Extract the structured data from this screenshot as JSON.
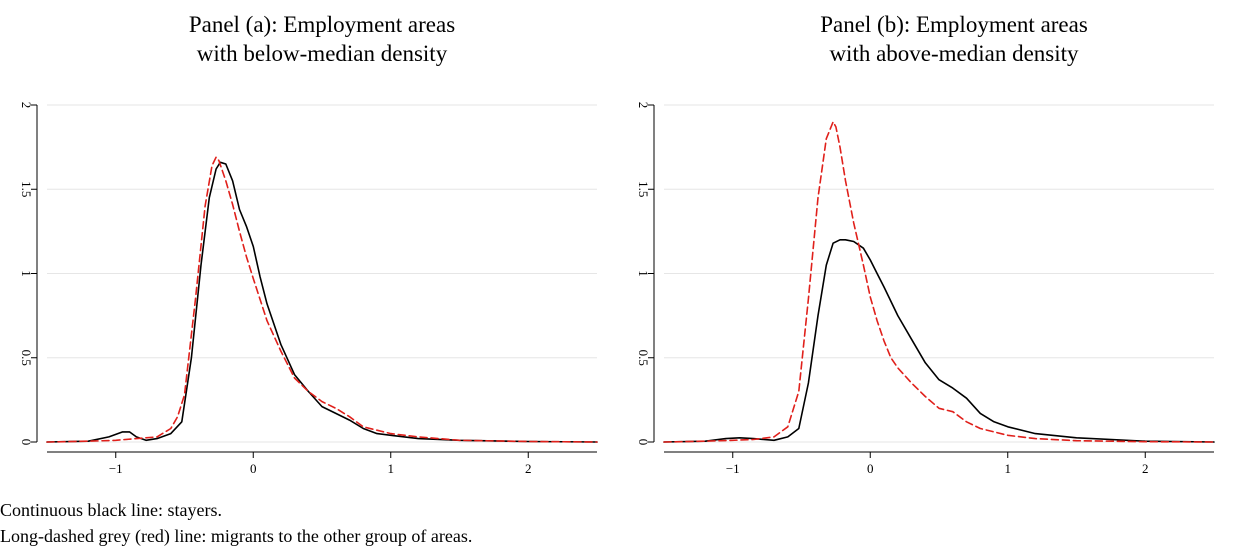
{
  "figure": {
    "caption_lines": [
      "Continuous black line: stayers.",
      "Long-dashed grey (red) line: migrants to the other group of areas."
    ]
  },
  "chart_data": [
    {
      "type": "line",
      "title_lines": [
        "Panel (a): Employment areas",
        "with below-median density"
      ],
      "xlabel": "",
      "ylabel": "",
      "xlim": [
        -1.5,
        2.5
      ],
      "ylim": [
        0,
        2
      ],
      "xticks": [
        -1,
        0,
        1,
        2
      ],
      "xtick_labels": [
        "−1",
        "0",
        "1",
        "2"
      ],
      "yticks": [
        0,
        0.5,
        1,
        1.5,
        2
      ],
      "ytick_labels": [
        "0",
        "0.5",
        "1",
        "1.5",
        "2"
      ],
      "grid": "horizontal",
      "colors": {
        "stayers": "#000000",
        "migrants": "#e0201b",
        "grid": "#e6e6e6"
      },
      "series": [
        {
          "style": "solid",
          "color": "#000000",
          "x": [
            -1.5,
            -1.2,
            -1.05,
            -0.95,
            -0.9,
            -0.85,
            -0.78,
            -0.7,
            -0.6,
            -0.52,
            -0.45,
            -0.38,
            -0.32,
            -0.27,
            -0.24,
            -0.2,
            -0.15,
            -0.1,
            -0.05,
            0.0,
            0.05,
            0.1,
            0.2,
            0.3,
            0.4,
            0.5,
            0.6,
            0.7,
            0.8,
            0.9,
            1.0,
            1.2,
            1.5,
            2.0,
            2.5
          ],
          "y": [
            0,
            0.005,
            0.03,
            0.06,
            0.06,
            0.03,
            0.01,
            0.02,
            0.05,
            0.12,
            0.5,
            1.05,
            1.45,
            1.62,
            1.66,
            1.65,
            1.55,
            1.38,
            1.28,
            1.16,
            0.98,
            0.82,
            0.58,
            0.4,
            0.3,
            0.21,
            0.17,
            0.13,
            0.08,
            0.05,
            0.04,
            0.02,
            0.01,
            0.003,
            0.0
          ]
        },
        {
          "style": "dashed",
          "color": "#e0201b",
          "x": [
            -1.5,
            -1.2,
            -1.0,
            -0.85,
            -0.7,
            -0.6,
            -0.55,
            -0.5,
            -0.42,
            -0.35,
            -0.3,
            -0.27,
            -0.25,
            -0.2,
            -0.15,
            -0.1,
            -0.05,
            0.0,
            0.1,
            0.2,
            0.3,
            0.4,
            0.5,
            0.6,
            0.7,
            0.8,
            0.9,
            1.0,
            1.2,
            1.5,
            2.0,
            2.5
          ],
          "y": [
            0,
            0.005,
            0.01,
            0.02,
            0.03,
            0.08,
            0.15,
            0.28,
            0.85,
            1.4,
            1.64,
            1.69,
            1.67,
            1.55,
            1.41,
            1.25,
            1.1,
            0.97,
            0.72,
            0.54,
            0.38,
            0.3,
            0.24,
            0.2,
            0.15,
            0.09,
            0.07,
            0.05,
            0.03,
            0.01,
            0.003,
            0.0
          ]
        }
      ]
    },
    {
      "type": "line",
      "title_lines": [
        "Panel (b): Employment areas",
        "with above-median density"
      ],
      "xlabel": "",
      "ylabel": "",
      "xlim": [
        -1.5,
        2.5
      ],
      "ylim": [
        0,
        2
      ],
      "xticks": [
        -1,
        0,
        1,
        2
      ],
      "xtick_labels": [
        "−1",
        "0",
        "1",
        "2"
      ],
      "yticks": [
        0,
        0.5,
        1,
        1.5,
        2
      ],
      "ytick_labels": [
        "0",
        "0.5",
        "1",
        "1.5",
        "2"
      ],
      "grid": "horizontal",
      "colors": {
        "stayers": "#000000",
        "migrants": "#e0201b",
        "grid": "#e6e6e6"
      },
      "series": [
        {
          "style": "solid",
          "color": "#000000",
          "x": [
            -1.5,
            -1.2,
            -1.05,
            -0.95,
            -0.85,
            -0.7,
            -0.6,
            -0.52,
            -0.45,
            -0.38,
            -0.32,
            -0.27,
            -0.22,
            -0.18,
            -0.12,
            -0.05,
            0.0,
            0.05,
            0.1,
            0.2,
            0.3,
            0.4,
            0.5,
            0.6,
            0.7,
            0.8,
            0.9,
            1.0,
            1.2,
            1.5,
            2.0,
            2.5
          ],
          "y": [
            0,
            0.005,
            0.02,
            0.025,
            0.02,
            0.01,
            0.03,
            0.08,
            0.35,
            0.75,
            1.05,
            1.18,
            1.2,
            1.2,
            1.19,
            1.15,
            1.08,
            1.0,
            0.92,
            0.75,
            0.61,
            0.47,
            0.37,
            0.32,
            0.26,
            0.17,
            0.12,
            0.09,
            0.05,
            0.025,
            0.005,
            0.0
          ]
        },
        {
          "style": "dashed",
          "color": "#e0201b",
          "x": [
            -1.5,
            -1.2,
            -1.0,
            -0.85,
            -0.7,
            -0.6,
            -0.52,
            -0.45,
            -0.38,
            -0.32,
            -0.27,
            -0.25,
            -0.22,
            -0.18,
            -0.12,
            -0.05,
            0.0,
            0.05,
            0.1,
            0.15,
            0.2,
            0.3,
            0.4,
            0.5,
            0.6,
            0.7,
            0.8,
            1.0,
            1.2,
            1.5,
            2.0,
            2.5
          ],
          "y": [
            0,
            0.005,
            0.01,
            0.015,
            0.03,
            0.09,
            0.3,
            0.85,
            1.45,
            1.8,
            1.9,
            1.87,
            1.75,
            1.55,
            1.3,
            1.05,
            0.86,
            0.72,
            0.6,
            0.5,
            0.44,
            0.35,
            0.27,
            0.2,
            0.18,
            0.12,
            0.08,
            0.04,
            0.02,
            0.008,
            0.002,
            0.0
          ]
        }
      ]
    }
  ]
}
